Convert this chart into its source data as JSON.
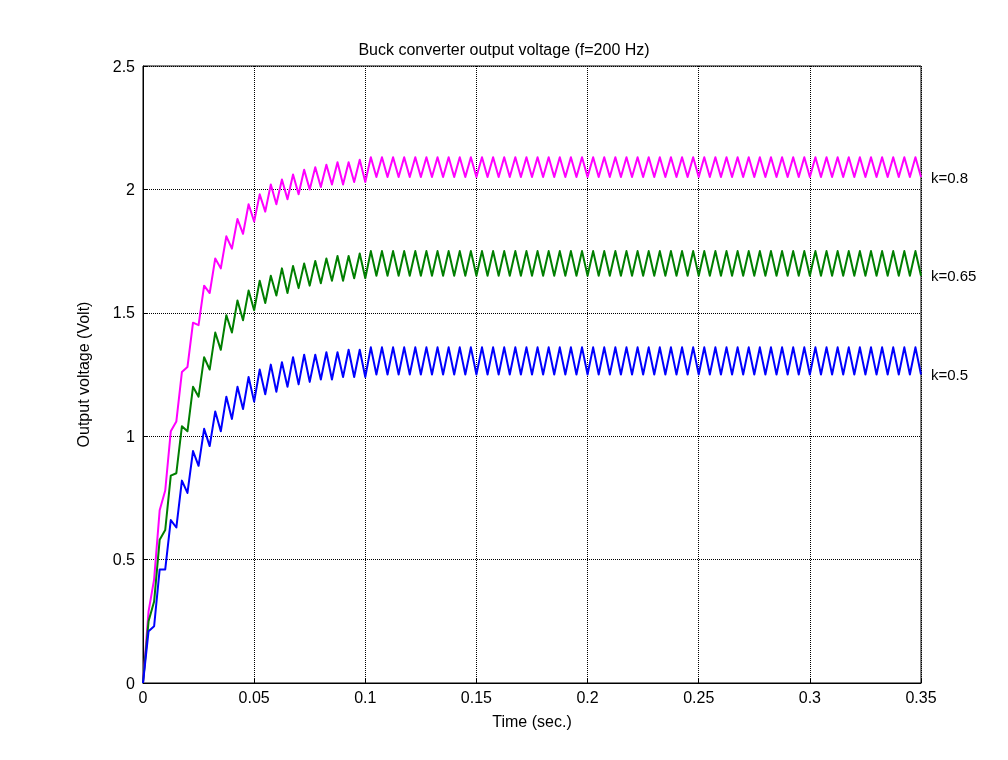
{
  "chart_data": {
    "type": "line",
    "title": "Buck converter output voltage (f=200 Hz)",
    "xlabel": "Time (sec.)",
    "ylabel": "Output voltage (Volt)",
    "xlim": [
      0,
      0.35
    ],
    "xticks": [
      0,
      0.05,
      0.1,
      0.15,
      0.2,
      0.25,
      0.3,
      0.35
    ],
    "ylim": [
      0,
      2.5
    ],
    "yticks": [
      0,
      0.5,
      1,
      1.5,
      2,
      2.5
    ],
    "grid": true,
    "legend": false,
    "x": [
      0,
      0.0025,
      0.005,
      0.0075,
      0.01,
      0.0125,
      0.015,
      0.0175,
      0.02,
      0.0225,
      0.025,
      0.0275,
      0.03,
      0.0325,
      0.035,
      0.0375,
      0.04,
      0.0425,
      0.045,
      0.0475,
      0.05,
      0.0525,
      0.055,
      0.0575,
      0.06,
      0.0625,
      0.065,
      0.0675,
      0.07,
      0.0725,
      0.075,
      0.0775,
      0.08,
      0.0825,
      0.085,
      0.0875,
      0.09,
      0.0925,
      0.095,
      0.0975,
      0.1,
      0.1025,
      0.105,
      0.1075,
      0.11,
      0.1125,
      0.115,
      0.1175,
      0.12,
      0.1225,
      0.125,
      0.1275,
      0.13,
      0.1325,
      0.135,
      0.1375,
      0.14,
      0.1425,
      0.145,
      0.1475,
      0.15,
      0.1525,
      0.155,
      0.1575,
      0.16,
      0.1625,
      0.165,
      0.1675,
      0.17,
      0.1725,
      0.175,
      0.1775,
      0.18,
      0.1825,
      0.185,
      0.1875,
      0.19,
      0.1925,
      0.195,
      0.1975,
      0.2,
      0.2025,
      0.205,
      0.2075,
      0.21,
      0.2125,
      0.215,
      0.2175,
      0.22,
      0.2225,
      0.225,
      0.2275,
      0.23,
      0.2325,
      0.235,
      0.2375,
      0.24,
      0.2425,
      0.245,
      0.2475,
      0.25,
      0.2525,
      0.255,
      0.2575,
      0.26,
      0.2625,
      0.265,
      0.2675,
      0.27,
      0.2725,
      0.275,
      0.2775,
      0.28,
      0.2825,
      0.285,
      0.2875,
      0.29,
      0.2925,
      0.295,
      0.2975,
      0.3,
      0.3025,
      0.305,
      0.3075,
      0.31,
      0.3125,
      0.315,
      0.3175,
      0.32,
      0.3225,
      0.325,
      0.3275,
      0.33,
      0.3325,
      0.335,
      0.3375,
      0.34,
      0.3425,
      0.345,
      0.3475,
      0.35
    ],
    "series": [
      {
        "name": "k=0.8",
        "color": "#ff00ff",
        "values": [
          0,
          0.29,
          0.42,
          0.7,
          0.78,
          1.02,
          1.06,
          1.26,
          1.28,
          1.46,
          1.45,
          1.61,
          1.58,
          1.72,
          1.68,
          1.81,
          1.76,
          1.88,
          1.82,
          1.94,
          1.87,
          1.98,
          1.91,
          2.02,
          1.94,
          2.04,
          1.96,
          2.06,
          1.98,
          2.08,
          2.0,
          2.09,
          2.01,
          2.1,
          2.02,
          2.11,
          2.02,
          2.11,
          2.03,
          2.12,
          2.03,
          2.13,
          2.05,
          2.13,
          2.05,
          2.13,
          2.05,
          2.13,
          2.05,
          2.13,
          2.05,
          2.13,
          2.05,
          2.13,
          2.05,
          2.13,
          2.05,
          2.13,
          2.05,
          2.13,
          2.05,
          2.13,
          2.05,
          2.13,
          2.05,
          2.13,
          2.05,
          2.13,
          2.05,
          2.13,
          2.05,
          2.13,
          2.05,
          2.13,
          2.05,
          2.13,
          2.05,
          2.13,
          2.05,
          2.13,
          2.05,
          2.13,
          2.05,
          2.13,
          2.05,
          2.13,
          2.05,
          2.13,
          2.05,
          2.13,
          2.05,
          2.13,
          2.05,
          2.13,
          2.05,
          2.13,
          2.05,
          2.13,
          2.05,
          2.13,
          2.05,
          2.13,
          2.05,
          2.13,
          2.05,
          2.13,
          2.05,
          2.13,
          2.05,
          2.13,
          2.05,
          2.13,
          2.05,
          2.13,
          2.05,
          2.13,
          2.05,
          2.13,
          2.05,
          2.13,
          2.05,
          2.13,
          2.05,
          2.13,
          2.05,
          2.13,
          2.05,
          2.13,
          2.05,
          2.13,
          2.05,
          2.13,
          2.05,
          2.13,
          2.05,
          2.13,
          2.05,
          2.13,
          2.05,
          2.13,
          2.05
        ]
      },
      {
        "name": "k=0.65",
        "color": "#007f00",
        "values": [
          0,
          0.25,
          0.33,
          0.58,
          0.62,
          0.84,
          0.85,
          1.04,
          1.02,
          1.2,
          1.16,
          1.32,
          1.27,
          1.42,
          1.35,
          1.49,
          1.42,
          1.55,
          1.47,
          1.59,
          1.51,
          1.63,
          1.54,
          1.65,
          1.57,
          1.68,
          1.58,
          1.69,
          1.6,
          1.7,
          1.61,
          1.71,
          1.62,
          1.72,
          1.63,
          1.73,
          1.63,
          1.73,
          1.64,
          1.74,
          1.64,
          1.75,
          1.65,
          1.75,
          1.65,
          1.75,
          1.65,
          1.75,
          1.65,
          1.75,
          1.65,
          1.75,
          1.65,
          1.75,
          1.65,
          1.75,
          1.65,
          1.75,
          1.65,
          1.75,
          1.65,
          1.75,
          1.65,
          1.75,
          1.65,
          1.75,
          1.65,
          1.75,
          1.65,
          1.75,
          1.65,
          1.75,
          1.65,
          1.75,
          1.65,
          1.75,
          1.65,
          1.75,
          1.65,
          1.75,
          1.65,
          1.75,
          1.65,
          1.75,
          1.65,
          1.75,
          1.65,
          1.75,
          1.65,
          1.75,
          1.65,
          1.75,
          1.65,
          1.75,
          1.65,
          1.75,
          1.65,
          1.75,
          1.65,
          1.75,
          1.65,
          1.75,
          1.65,
          1.75,
          1.65,
          1.75,
          1.65,
          1.75,
          1.65,
          1.75,
          1.65,
          1.75,
          1.65,
          1.75,
          1.65,
          1.75,
          1.65,
          1.75,
          1.65,
          1.75,
          1.65,
          1.75,
          1.65,
          1.75,
          1.65,
          1.75,
          1.65,
          1.75,
          1.65,
          1.75,
          1.65,
          1.75,
          1.65,
          1.75,
          1.65,
          1.75,
          1.65,
          1.75,
          1.65,
          1.75,
          1.65
        ]
      },
      {
        "name": "k=0.5",
        "color": "#0000ff",
        "values": [
          0,
          0.21,
          0.23,
          0.46,
          0.46,
          0.66,
          0.63,
          0.82,
          0.77,
          0.94,
          0.88,
          1.03,
          0.96,
          1.1,
          1.02,
          1.16,
          1.07,
          1.2,
          1.11,
          1.24,
          1.14,
          1.27,
          1.17,
          1.29,
          1.18,
          1.3,
          1.2,
          1.32,
          1.21,
          1.33,
          1.22,
          1.33,
          1.23,
          1.34,
          1.23,
          1.34,
          1.24,
          1.35,
          1.24,
          1.35,
          1.24,
          1.36,
          1.25,
          1.36,
          1.25,
          1.36,
          1.25,
          1.36,
          1.25,
          1.36,
          1.25,
          1.36,
          1.25,
          1.36,
          1.25,
          1.36,
          1.25,
          1.36,
          1.25,
          1.36,
          1.25,
          1.36,
          1.25,
          1.36,
          1.25,
          1.36,
          1.25,
          1.36,
          1.25,
          1.36,
          1.25,
          1.36,
          1.25,
          1.36,
          1.25,
          1.36,
          1.25,
          1.36,
          1.25,
          1.36,
          1.25,
          1.36,
          1.25,
          1.36,
          1.25,
          1.36,
          1.25,
          1.36,
          1.25,
          1.36,
          1.25,
          1.36,
          1.25,
          1.36,
          1.25,
          1.36,
          1.25,
          1.36,
          1.25,
          1.36,
          1.25,
          1.36,
          1.25,
          1.36,
          1.25,
          1.36,
          1.25,
          1.36,
          1.25,
          1.36,
          1.25,
          1.36,
          1.25,
          1.36,
          1.25,
          1.36,
          1.25,
          1.36,
          1.25,
          1.36,
          1.25,
          1.36,
          1.25,
          1.36,
          1.25,
          1.36,
          1.25,
          1.36,
          1.25,
          1.36,
          1.25,
          1.36,
          1.25,
          1.36,
          1.25,
          1.36,
          1.25,
          1.36,
          1.25,
          1.36,
          1.25
        ]
      }
    ]
  }
}
